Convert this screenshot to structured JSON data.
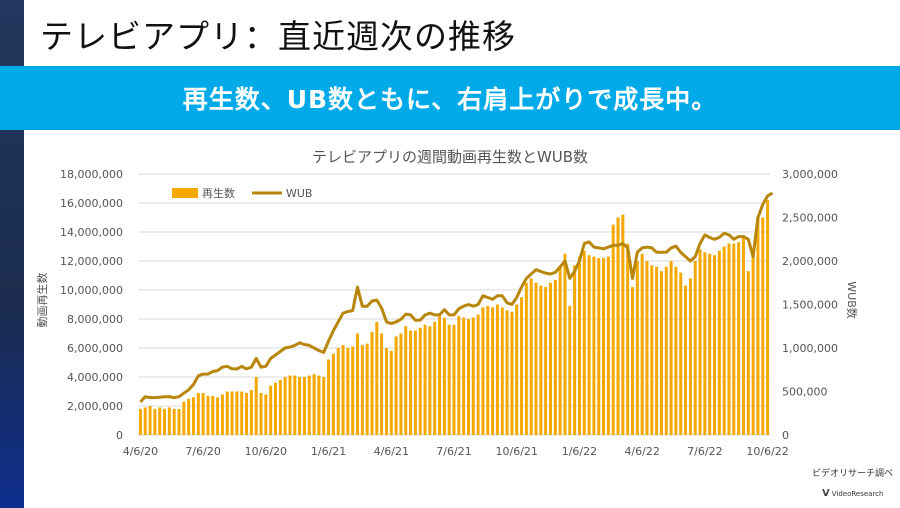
{
  "slide": {
    "title": "テレビアプリ：直近週次の推移",
    "banner": "再生数、UB数ともに、右肩上がりで成長中。",
    "source": "ビデオリサーチ調べ",
    "logo": "VideoResearch"
  },
  "colors": {
    "bar": "#f5a800",
    "line": "#b8860b",
    "banner": "#00a9e8"
  },
  "chart_data": {
    "type": "bar+line",
    "title": "テレビアプリの週間動画再生数とWUB数",
    "ylabel_left": "動画再生数",
    "ylabel_right": "WUB数",
    "ylim_left": [
      0,
      18000000
    ],
    "ylim_right": [
      0,
      3000000
    ],
    "yticks_left": [
      "0",
      "2,000,000",
      "4,000,000",
      "6,000,000",
      "8,000,000",
      "10,000,000",
      "12,000,000",
      "14,000,000",
      "16,000,000",
      "18,000,000"
    ],
    "yticks_right": [
      "0",
      "500,000",
      "1,000,000",
      "1,500,000",
      "2,000,000",
      "2,500,000",
      "3,000,000"
    ],
    "xtick_labels": [
      "4/6/20",
      "7/6/20",
      "10/6/20",
      "1/6/21",
      "4/6/21",
      "7/6/21",
      "10/6/21",
      "1/6/22",
      "4/6/22",
      "7/6/22",
      "10/6/22"
    ],
    "xtick_week_index": [
      0,
      13,
      26,
      39,
      52,
      65,
      78,
      91,
      104,
      117,
      130
    ],
    "legend": [
      "再生数",
      "WUB"
    ],
    "series": [
      {
        "name": "再生数",
        "axis": "left",
        "type": "bar",
        "values": [
          1800000,
          1900000,
          2000000,
          1800000,
          1900000,
          1800000,
          1900000,
          1800000,
          1800000,
          2300000,
          2500000,
          2600000,
          2900000,
          2900000,
          2700000,
          2700000,
          2600000,
          2800000,
          3000000,
          3000000,
          3000000,
          3000000,
          2900000,
          3100000,
          4000000,
          2900000,
          2800000,
          3400000,
          3600000,
          3800000,
          4000000,
          4100000,
          4100000,
          4000000,
          4000000,
          4100000,
          4200000,
          4100000,
          4000000,
          5200000,
          5600000,
          6000000,
          6200000,
          6000000,
          6100000,
          7000000,
          6200000,
          6300000,
          7100000,
          7800000,
          7000000,
          6000000,
          5800000,
          6800000,
          7000000,
          7500000,
          7200000,
          7200000,
          7400000,
          7600000,
          7500000,
          7800000,
          8200000,
          8100000,
          7600000,
          7600000,
          8200000,
          8100000,
          8000000,
          8100000,
          8300000,
          8800000,
          8900000,
          8800000,
          9000000,
          8800000,
          8600000,
          8500000,
          9000000,
          9500000,
          10500000,
          10800000,
          10500000,
          10300000,
          10200000,
          10500000,
          10700000,
          11700000,
          12500000,
          8900000,
          11700000,
          12300000,
          12700000,
          12400000,
          12300000,
          12200000,
          12200000,
          12300000,
          14500000,
          15000000,
          15200000,
          13200000,
          10200000,
          12000000,
          12500000,
          12000000,
          11700000,
          11600000,
          11300000,
          11600000,
          12000000,
          11600000,
          11200000,
          10300000,
          10800000,
          12000000,
          12800000,
          12600000,
          12500000,
          12400000,
          12700000,
          13000000,
          13200000,
          13200000,
          13300000,
          13600000,
          11300000,
          12400000,
          15000000,
          15000000,
          16200000
        ]
      },
      {
        "name": "WUB",
        "axis": "right",
        "type": "line",
        "values": [
          380000,
          440000,
          430000,
          430000,
          435000,
          440000,
          440000,
          430000,
          440000,
          480000,
          520000,
          580000,
          680000,
          700000,
          700000,
          730000,
          740000,
          780000,
          790000,
          760000,
          760000,
          790000,
          760000,
          780000,
          880000,
          780000,
          790000,
          880000,
          920000,
          960000,
          1000000,
          1010000,
          1030000,
          1060000,
          1040000,
          1030000,
          1000000,
          970000,
          950000,
          1080000,
          1200000,
          1300000,
          1400000,
          1420000,
          1430000,
          1700000,
          1480000,
          1480000,
          1540000,
          1550000,
          1460000,
          1300000,
          1280000,
          1300000,
          1330000,
          1390000,
          1380000,
          1320000,
          1320000,
          1380000,
          1400000,
          1380000,
          1380000,
          1440000,
          1380000,
          1380000,
          1450000,
          1480000,
          1500000,
          1480000,
          1500000,
          1600000,
          1580000,
          1560000,
          1600000,
          1600000,
          1520000,
          1500000,
          1580000,
          1700000,
          1800000,
          1850000,
          1900000,
          1880000,
          1860000,
          1850000,
          1870000,
          1930000,
          2000000,
          1800000,
          1880000,
          2000000,
          2200000,
          2220000,
          2160000,
          2150000,
          2140000,
          2160000,
          2180000,
          2180000,
          2200000,
          2150000,
          1800000,
          2100000,
          2150000,
          2160000,
          2150000,
          2100000,
          2100000,
          2100000,
          2150000,
          2170000,
          2100000,
          2050000,
          2000000,
          2050000,
          2200000,
          2300000,
          2270000,
          2250000,
          2270000,
          2320000,
          2300000,
          2250000,
          2280000,
          2280000,
          2250000,
          2050000,
          2500000,
          2650000,
          2750000,
          2780000
        ]
      }
    ]
  }
}
